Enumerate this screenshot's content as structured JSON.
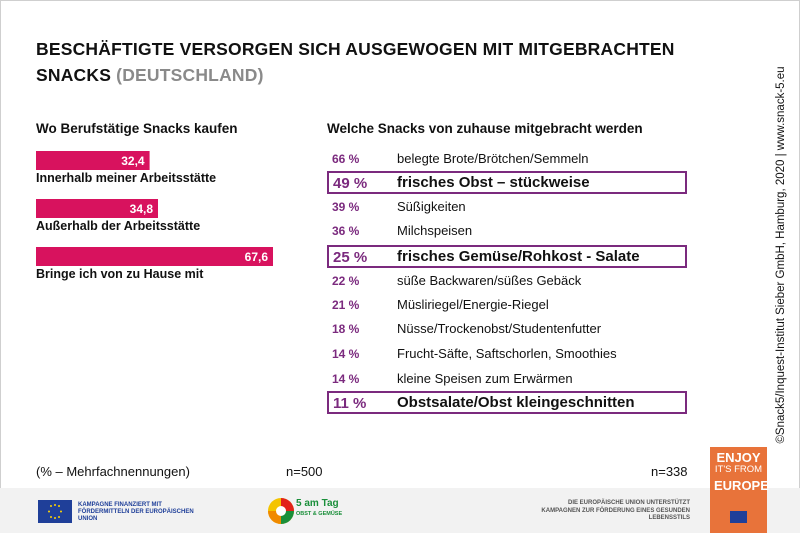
{
  "title": {
    "main": "BESCHÄFTIGTE VERSORGEN SICH AUSGEWOGEN MIT MITGEBRACHTEN SNACKS",
    "suffix": "(DEUTSCHLAND)"
  },
  "colors": {
    "bar": "#d8125e",
    "highlight": "#7b2a7e",
    "enjoy_orange": "#e8733a",
    "eu_blue": "#1f3f99"
  },
  "chart_data": [
    {
      "type": "bar",
      "orientation": "horizontal",
      "title": "Wo Berufstätige Snacks kaufen",
      "categories": [
        "Innerhalb meiner Arbeitsstätte",
        "Außerhalb der Arbeitsstätte",
        "Bringe ich von zu Hause mit"
      ],
      "values": [
        32.4,
        34.8,
        67.6
      ],
      "value_labels": [
        "32,4",
        "34,8",
        "67,6"
      ],
      "unit": "%",
      "n": "n=500"
    },
    {
      "type": "table",
      "title": "Welche Snacks von zuhause mitgebracht werden",
      "rows": [
        {
          "pct": "66 %",
          "label": "belegte Brote/Brötchen/Semmeln",
          "value": 66,
          "highlight": false
        },
        {
          "pct": "49 %",
          "label": "frisches Obst – stückweise",
          "value": 49,
          "highlight": true
        },
        {
          "pct": "39 %",
          "label": "Süßigkeiten",
          "value": 39,
          "highlight": false
        },
        {
          "pct": "36 %",
          "label": "Milchspeisen",
          "value": 36,
          "highlight": false
        },
        {
          "pct": "25 %",
          "label": "frisches Gemüse/Rohkost - Salate",
          "value": 25,
          "highlight": true
        },
        {
          "pct": "22 %",
          "label": "süße Backwaren/süßes Gebäck",
          "value": 22,
          "highlight": false
        },
        {
          "pct": "21 %",
          "label": "Müsliriegel/Energie-Riegel",
          "value": 21,
          "highlight": false
        },
        {
          "pct": "18 %",
          "label": "Nüsse/Trockenobst/Studentenfutter",
          "value": 18,
          "highlight": false
        },
        {
          "pct": "14 %",
          "label": "Frucht-Säfte, Saftschorlen, Smoothies",
          "value": 14,
          "highlight": false
        },
        {
          "pct": "14 %",
          "label": "kleine Speisen zum Erwärmen",
          "value": 14,
          "highlight": false
        },
        {
          "pct": "11 %",
          "label": "Obstsalate/Obst kleingeschnitten",
          "value": 11,
          "highlight": true
        }
      ],
      "n": "n=338"
    }
  ],
  "notes": {
    "multiple": "(% – Mehrfachnennungen)",
    "n_left": "n=500",
    "n_right": "n=338"
  },
  "source": "©Snack5/Inquest-Institut Sieber GmbH, Hamburg, 2020 | www.snack-5.eu",
  "footer": {
    "eu_left": "KAMPAGNE FINANZIERT MIT FÖRDERMITTELN DER EUROPÄISCHEN UNION",
    "logo_main": "5 am Tag",
    "logo_sub": "OBST & GEMÜSE",
    "eu_right": "DIE EUROPÄISCHE UNION UNTERSTÜTZT KAMPAGNEN ZUR FÖRDERUNG EINES GESUNDEN LEBENSSTILS",
    "enjoy_1": "ENJOY",
    "enjoy_2": "IT'S FROM",
    "enjoy_3": "EUROPE"
  }
}
